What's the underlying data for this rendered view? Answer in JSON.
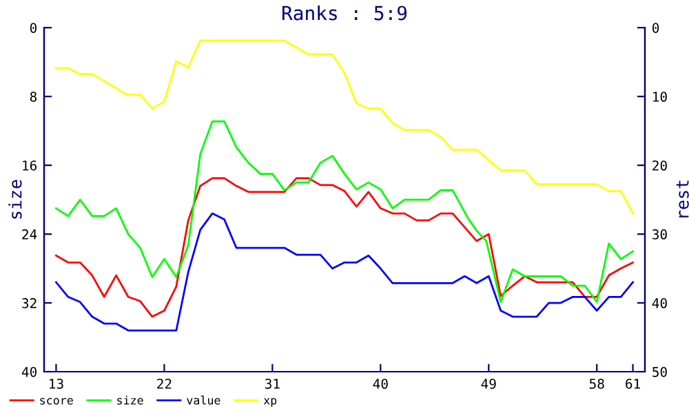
{
  "chart_data": {
    "type": "line",
    "title": "Ranks : 5:9",
    "ylabel": "size",
    "y2label": "rest",
    "xlim": [
      12,
      62
    ],
    "xticks": [
      13,
      22,
      31,
      40,
      49,
      58,
      61
    ],
    "ylim": [
      40,
      0
    ],
    "yticks": [
      0,
      8,
      16,
      24,
      32,
      40
    ],
    "y2lim": [
      50,
      0
    ],
    "y2ticks": [
      0,
      10,
      20,
      30,
      40,
      50
    ],
    "grid": false,
    "legend": "bottom",
    "marker": "none",
    "line_style": "solid",
    "series": [
      {
        "name": "score",
        "color": "#ff0000",
        "x": [
          13,
          14,
          15,
          16,
          17,
          18,
          19,
          20,
          21,
          22,
          23,
          24,
          25,
          26,
          27,
          28,
          29,
          32,
          33,
          34,
          35,
          36,
          37,
          38,
          39,
          40,
          41,
          42,
          43,
          44,
          45,
          46,
          47,
          48,
          49,
          50,
          51,
          52,
          53,
          56,
          57,
          58,
          59,
          60,
          61
        ],
        "values": [
          26.5,
          27.3,
          27.3,
          28.8,
          31.3,
          28.8,
          31.3,
          31.8,
          33.6,
          32.9,
          30.1,
          22.4,
          18.4,
          17.5,
          17.5,
          18.4,
          19.1,
          19.1,
          17.5,
          17.5,
          18.3,
          18.3,
          19.0,
          20.8,
          19.1,
          21.0,
          21.6,
          21.6,
          22.4,
          22.4,
          21.6,
          21.6,
          23.2,
          24.8,
          24.0,
          31.2,
          30.0,
          28.9,
          29.6,
          29.6,
          31.3,
          31.3,
          28.8,
          28.0,
          27.3
        ]
      },
      {
        "name": "size",
        "color": "#00ff00",
        "x": [
          13,
          14,
          15,
          16,
          17,
          18,
          19,
          20,
          21,
          22,
          23,
          24,
          25,
          26,
          27,
          28,
          29,
          30,
          31,
          32,
          33,
          34,
          35,
          36,
          37,
          38,
          39,
          40,
          41,
          42,
          44,
          45,
          46,
          47.3,
          48,
          48.8,
          50,
          51,
          52,
          55,
          56,
          57,
          58,
          59,
          60,
          61
        ],
        "values": [
          21.0,
          21.9,
          20.0,
          21.9,
          21.9,
          21.0,
          24.0,
          25.6,
          29.0,
          26.9,
          29.0,
          25.3,
          14.7,
          10.9,
          10.9,
          13.9,
          15.7,
          17.0,
          17.0,
          18.9,
          18.0,
          18.0,
          15.7,
          14.9,
          17.0,
          18.8,
          18.0,
          18.8,
          21.0,
          20.0,
          20.0,
          18.9,
          18.9,
          22.2,
          23.6,
          24.8,
          31.9,
          28.1,
          28.9,
          28.9,
          30.0,
          30.0,
          31.9,
          25.1,
          26.9,
          26.0
        ]
      },
      {
        "name": "value",
        "color": "#0000ff",
        "x": [
          13,
          14,
          15,
          16,
          17,
          18,
          19,
          23,
          24,
          25,
          26,
          27,
          28,
          32,
          33,
          35,
          36,
          37,
          38,
          39,
          40,
          41,
          46,
          47,
          48,
          49,
          50,
          51,
          53,
          54,
          55,
          56,
          57,
          58,
          59,
          60,
          61
        ],
        "values": [
          29.6,
          31.3,
          31.9,
          33.6,
          34.4,
          34.4,
          35.2,
          35.2,
          28.4,
          23.5,
          21.6,
          22.3,
          25.6,
          25.6,
          26.4,
          26.4,
          28.0,
          27.3,
          27.3,
          26.5,
          28.0,
          29.7,
          29.7,
          28.9,
          29.7,
          28.9,
          32.9,
          33.6,
          33.6,
          32.0,
          32.0,
          31.3,
          31.3,
          32.9,
          31.3,
          31.3,
          29.6
        ]
      },
      {
        "name": "xp",
        "color": "#ffff00",
        "x": [
          13,
          14,
          15,
          16,
          17.6,
          18.9,
          20,
          21,
          22,
          23,
          24,
          25,
          32,
          33,
          34,
          36,
          37,
          38,
          39,
          40,
          41,
          42,
          44,
          45,
          46,
          48,
          50,
          52,
          53,
          58,
          59,
          60,
          61
        ],
        "values": [
          4.7,
          4.7,
          5.4,
          5.4,
          6.7,
          7.8,
          7.8,
          9.4,
          8.6,
          3.9,
          4.6,
          1.5,
          1.5,
          2.3,
          3.1,
          3.1,
          5.3,
          8.8,
          9.4,
          9.4,
          11.1,
          11.9,
          11.9,
          12.7,
          14.2,
          14.2,
          16.6,
          16.6,
          18.2,
          18.2,
          19.0,
          19.0,
          21.6
        ]
      }
    ]
  }
}
